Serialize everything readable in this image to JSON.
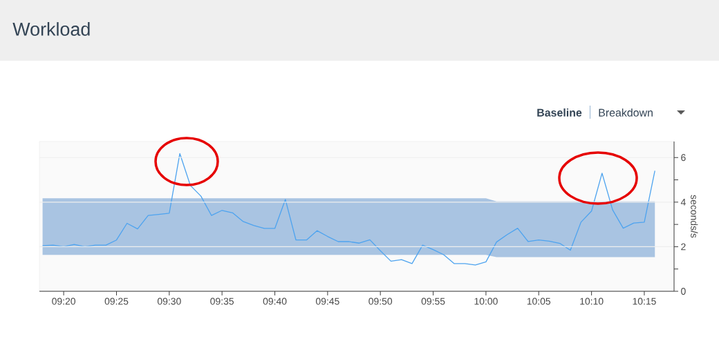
{
  "chart_data": {
    "type": "line",
    "title": "Workload",
    "ylabel": "seconds/s",
    "annotations": [
      "Baseline",
      "Breakdown"
    ],
    "x": [
      9.3,
      9.3167,
      9.3333,
      9.35,
      9.3667,
      9.3833,
      9.4,
      9.4167,
      9.4333,
      9.45,
      9.4667,
      9.4833,
      9.5,
      9.5167,
      9.5333,
      9.55,
      9.5667,
      9.5833,
      9.6,
      9.6167,
      9.6333,
      9.65,
      9.6667,
      9.6833,
      9.7,
      9.7167,
      9.7333,
      9.75,
      9.7667,
      9.7833,
      9.8,
      9.8167,
      9.8333,
      9.85,
      9.8667,
      9.8833,
      9.9,
      9.9167,
      9.9333,
      9.95,
      9.9667,
      9.9833,
      10,
      10.0167,
      10.0333,
      10.05,
      10.0667,
      10.0833,
      10.1,
      10.1167,
      10.1333,
      10.15,
      10.1667,
      10.1833,
      10.2,
      10.2167,
      10.2333,
      10.25,
      10.2667
    ],
    "series": [
      {
        "color": "#4da3ef",
        "values": [
          2.05,
          2.07,
          2.0,
          2.1,
          2.0,
          2.07,
          2.07,
          2.3,
          3.05,
          2.8,
          3.4,
          3.45,
          3.5,
          6.18,
          4.75,
          4.27,
          3.4,
          3.63,
          3.52,
          3.13,
          2.95,
          2.82,
          2.82,
          4.12,
          2.3,
          2.3,
          2.72,
          2.46,
          2.23,
          2.23,
          2.16,
          2.31,
          1.82,
          1.35,
          1.42,
          1.24,
          2.07,
          1.87,
          1.64,
          1.24,
          1.24,
          1.18,
          1.32,
          2.21,
          2.54,
          2.83,
          2.23,
          2.3,
          2.25,
          2.15,
          1.84,
          3.1,
          3.6,
          5.3,
          3.65,
          2.83,
          3.06,
          3.1,
          5.41
        ],
        "upper": [
          4.17,
          4.17,
          4.17,
          4.17,
          4.17,
          4.17,
          4.17,
          4.17,
          4.17,
          4.17,
          4.17,
          4.17,
          4.17,
          4.17,
          4.17,
          4.17,
          4.17,
          4.17,
          4.17,
          4.17,
          4.17,
          4.17,
          4.17,
          4.17,
          4.17,
          4.17,
          4.17,
          4.17,
          4.17,
          4.17,
          4.17,
          4.17,
          4.17,
          4.17,
          4.17,
          4.17,
          4.17,
          4.17,
          4.17,
          4.17,
          4.17,
          4.17,
          4.17,
          4.03,
          4.03,
          4.03,
          4.03,
          4.03,
          4.03,
          4.03,
          4.03,
          4.03,
          4.03,
          4.03,
          4.03,
          4.03,
          4.03,
          4.03,
          4.03
        ],
        "lower": [
          1.63,
          1.63,
          1.63,
          1.63,
          1.63,
          1.63,
          1.63,
          1.63,
          1.63,
          1.63,
          1.63,
          1.63,
          1.63,
          1.63,
          1.63,
          1.63,
          1.63,
          1.63,
          1.63,
          1.63,
          1.63,
          1.63,
          1.63,
          1.63,
          1.63,
          1.63,
          1.63,
          1.63,
          1.63,
          1.63,
          1.63,
          1.63,
          1.63,
          1.63,
          1.63,
          1.63,
          1.63,
          1.63,
          1.63,
          1.63,
          1.63,
          1.63,
          1.63,
          1.53,
          1.53,
          1.53,
          1.53,
          1.53,
          1.53,
          1.53,
          1.53,
          1.53,
          1.53,
          1.53,
          1.53,
          1.53,
          1.53,
          1.53,
          1.53
        ]
      }
    ],
    "xlim": [
      9.295,
      10.297
    ],
    "ylim": [
      0,
      6.72
    ],
    "xticks": [
      {
        "value": 9.3333,
        "label": "09:20"
      },
      {
        "value": 9.4167,
        "label": "09:25"
      },
      {
        "value": 9.5,
        "label": "09:30"
      },
      {
        "value": 9.5833,
        "label": "09:35"
      },
      {
        "value": 9.6667,
        "label": "09:40"
      },
      {
        "value": 9.75,
        "label": "09:45"
      },
      {
        "value": 9.8333,
        "label": "09:50"
      },
      {
        "value": 9.9167,
        "label": "09:55"
      },
      {
        "value": 10,
        "label": "10:00"
      },
      {
        "value": 10.0833,
        "label": "10:05"
      },
      {
        "value": 10.1667,
        "label": "10:10"
      },
      {
        "value": 10.25,
        "label": "10:15"
      }
    ],
    "yticks": [
      0,
      {
        "value": 1,
        "label": null
      },
      2,
      {
        "value": 3,
        "label": null
      },
      4,
      {
        "value": 5,
        "label": null
      },
      6
    ],
    "grid": "y",
    "marker": "none",
    "line_style": "solid"
  }
}
